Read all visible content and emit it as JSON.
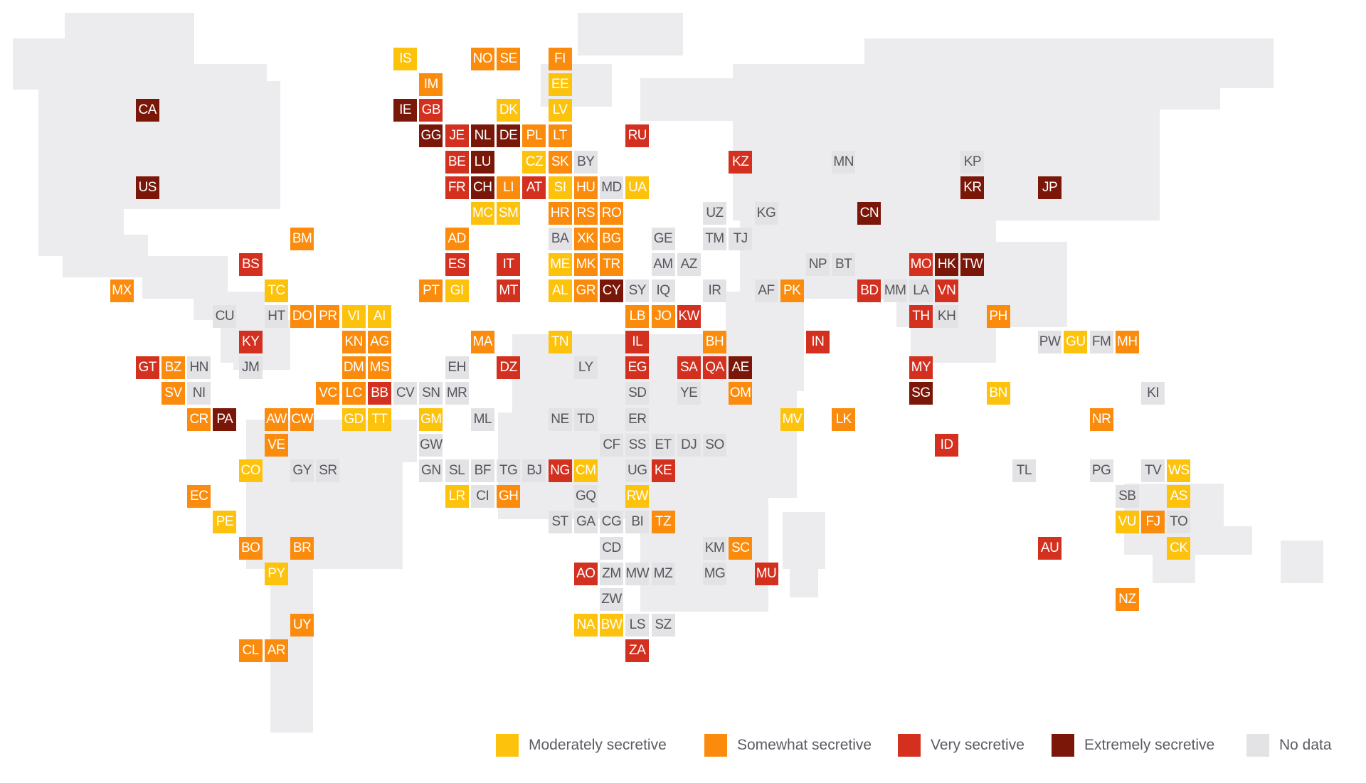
{
  "colors": {
    "moderately": "#fdc20c",
    "somewhat": "#fb8b0c",
    "very": "#d3301f",
    "extremely": "#7a1709",
    "no_data": "#e3e3e6",
    "land": "#ececee"
  },
  "legend": [
    {
      "key": "c1",
      "label": "Moderately secretive"
    },
    {
      "key": "c2",
      "label": "Somewhat secretive"
    },
    {
      "key": "c3",
      "label": "Very secretive"
    },
    {
      "key": "c4",
      "label": "Extremely secretive"
    },
    {
      "key": "nd",
      "label": "No data"
    }
  ],
  "tiles": [
    {
      "code": "IS",
      "category": "c1"
    },
    {
      "code": "NO",
      "category": "c2"
    },
    {
      "code": "SE",
      "category": "c2"
    },
    {
      "code": "FI",
      "category": "c2"
    },
    {
      "code": "IM",
      "category": "c2"
    },
    {
      "code": "EE",
      "category": "c1"
    },
    {
      "code": "CA",
      "category": "c4"
    },
    {
      "code": "IE",
      "category": "c4"
    },
    {
      "code": "GB",
      "category": "c3"
    },
    {
      "code": "DK",
      "category": "c1"
    },
    {
      "code": "LV",
      "category": "c1"
    },
    {
      "code": "GG",
      "category": "c4"
    },
    {
      "code": "JE",
      "category": "c3"
    },
    {
      "code": "NL",
      "category": "c4"
    },
    {
      "code": "DE",
      "category": "c4"
    },
    {
      "code": "PL",
      "category": "c2"
    },
    {
      "code": "LT",
      "category": "c2"
    },
    {
      "code": "RU",
      "category": "c3"
    },
    {
      "code": "BE",
      "category": "c3"
    },
    {
      "code": "LU",
      "category": "c4"
    },
    {
      "code": "CZ",
      "category": "c1"
    },
    {
      "code": "SK",
      "category": "c2"
    },
    {
      "code": "BY",
      "category": "nd"
    },
    {
      "code": "KZ",
      "category": "c3"
    },
    {
      "code": "MN",
      "category": "nd"
    },
    {
      "code": "KP",
      "category": "nd"
    },
    {
      "code": "US",
      "category": "c4"
    },
    {
      "code": "FR",
      "category": "c3"
    },
    {
      "code": "CH",
      "category": "c4"
    },
    {
      "code": "LI",
      "category": "c2"
    },
    {
      "code": "AT",
      "category": "c3"
    },
    {
      "code": "SI",
      "category": "c1"
    },
    {
      "code": "HU",
      "category": "c2"
    },
    {
      "code": "MD",
      "category": "nd"
    },
    {
      "code": "UA",
      "category": "c1"
    },
    {
      "code": "KR",
      "category": "c4"
    },
    {
      "code": "JP",
      "category": "c4"
    },
    {
      "code": "MC",
      "category": "c1"
    },
    {
      "code": "SM",
      "category": "c1"
    },
    {
      "code": "HR",
      "category": "c2"
    },
    {
      "code": "RS",
      "category": "c2"
    },
    {
      "code": "RO",
      "category": "c2"
    },
    {
      "code": "UZ",
      "category": "nd"
    },
    {
      "code": "KG",
      "category": "nd"
    },
    {
      "code": "CN",
      "category": "c4"
    },
    {
      "code": "BM",
      "category": "c2"
    },
    {
      "code": "AD",
      "category": "c2"
    },
    {
      "code": "BA",
      "category": "nd"
    },
    {
      "code": "XK",
      "category": "c2"
    },
    {
      "code": "BG",
      "category": "c2"
    },
    {
      "code": "GE",
      "category": "nd"
    },
    {
      "code": "TM",
      "category": "nd"
    },
    {
      "code": "TJ",
      "category": "nd"
    },
    {
      "code": "BS",
      "category": "c3"
    },
    {
      "code": "ES",
      "category": "c3"
    },
    {
      "code": "IT",
      "category": "c3"
    },
    {
      "code": "ME",
      "category": "c1"
    },
    {
      "code": "MK",
      "category": "c2"
    },
    {
      "code": "TR",
      "category": "c2"
    },
    {
      "code": "AM",
      "category": "nd"
    },
    {
      "code": "AZ",
      "category": "nd"
    },
    {
      "code": "NP",
      "category": "nd"
    },
    {
      "code": "BT",
      "category": "nd"
    },
    {
      "code": "MO",
      "category": "c3"
    },
    {
      "code": "HK",
      "category": "c4"
    },
    {
      "code": "TW",
      "category": "c4"
    },
    {
      "code": "MX",
      "category": "c2"
    },
    {
      "code": "TC",
      "category": "c1"
    },
    {
      "code": "PT",
      "category": "c2"
    },
    {
      "code": "GI",
      "category": "c1"
    },
    {
      "code": "MT",
      "category": "c3"
    },
    {
      "code": "AL",
      "category": "c1"
    },
    {
      "code": "GR",
      "category": "c2"
    },
    {
      "code": "CY",
      "category": "c4"
    },
    {
      "code": "SY",
      "category": "nd"
    },
    {
      "code": "IQ",
      "category": "nd"
    },
    {
      "code": "IR",
      "category": "nd"
    },
    {
      "code": "AF",
      "category": "nd"
    },
    {
      "code": "PK",
      "category": "c2"
    },
    {
      "code": "BD",
      "category": "c3"
    },
    {
      "code": "MM",
      "category": "nd"
    },
    {
      "code": "LA",
      "category": "nd"
    },
    {
      "code": "VN",
      "category": "c3"
    },
    {
      "code": "CU",
      "category": "nd"
    },
    {
      "code": "HT",
      "category": "nd"
    },
    {
      "code": "DO",
      "category": "c2"
    },
    {
      "code": "PR",
      "category": "c2"
    },
    {
      "code": "VI",
      "category": "c1"
    },
    {
      "code": "AI",
      "category": "c1"
    },
    {
      "code": "LB",
      "category": "c2"
    },
    {
      "code": "JO",
      "category": "c2"
    },
    {
      "code": "KW",
      "category": "c3"
    },
    {
      "code": "TH",
      "category": "c3"
    },
    {
      "code": "KH",
      "category": "nd"
    },
    {
      "code": "PH",
      "category": "c2"
    },
    {
      "code": "KY",
      "category": "c3"
    },
    {
      "code": "KN",
      "category": "c2"
    },
    {
      "code": "AG",
      "category": "c2"
    },
    {
      "code": "MA",
      "category": "c2"
    },
    {
      "code": "TN",
      "category": "c1"
    },
    {
      "code": "IL",
      "category": "c3"
    },
    {
      "code": "BH",
      "category": "c2"
    },
    {
      "code": "IN",
      "category": "c3"
    },
    {
      "code": "PW",
      "category": "nd"
    },
    {
      "code": "GU",
      "category": "c1"
    },
    {
      "code": "FM",
      "category": "nd"
    },
    {
      "code": "MH",
      "category": "c2"
    },
    {
      "code": "GT",
      "category": "c3"
    },
    {
      "code": "BZ",
      "category": "c2"
    },
    {
      "code": "HN",
      "category": "nd"
    },
    {
      "code": "JM",
      "category": "nd"
    },
    {
      "code": "DM",
      "category": "c2"
    },
    {
      "code": "MS",
      "category": "c2"
    },
    {
      "code": "EH",
      "category": "nd"
    },
    {
      "code": "DZ",
      "category": "c3"
    },
    {
      "code": "LY",
      "category": "nd"
    },
    {
      "code": "EG",
      "category": "c3"
    },
    {
      "code": "SA",
      "category": "c3"
    },
    {
      "code": "QA",
      "category": "c3"
    },
    {
      "code": "AE",
      "category": "c4"
    },
    {
      "code": "MY",
      "category": "c3"
    },
    {
      "code": "SV",
      "category": "c2"
    },
    {
      "code": "NI",
      "category": "nd"
    },
    {
      "code": "VC",
      "category": "c2"
    },
    {
      "code": "LC",
      "category": "c2"
    },
    {
      "code": "BB",
      "category": "c3"
    },
    {
      "code": "CV",
      "category": "nd"
    },
    {
      "code": "SN",
      "category": "nd"
    },
    {
      "code": "MR",
      "category": "nd"
    },
    {
      "code": "SD",
      "category": "nd"
    },
    {
      "code": "YE",
      "category": "nd"
    },
    {
      "code": "OM",
      "category": "c2"
    },
    {
      "code": "SG",
      "category": "c4"
    },
    {
      "code": "BN",
      "category": "c1"
    },
    {
      "code": "KI",
      "category": "nd"
    },
    {
      "code": "CR",
      "category": "c2"
    },
    {
      "code": "PA",
      "category": "c4"
    },
    {
      "code": "AW",
      "category": "c2"
    },
    {
      "code": "CW",
      "category": "c2"
    },
    {
      "code": "GD",
      "category": "c1"
    },
    {
      "code": "TT",
      "category": "c1"
    },
    {
      "code": "GM",
      "category": "c1"
    },
    {
      "code": "ML",
      "category": "nd"
    },
    {
      "code": "NE",
      "category": "nd"
    },
    {
      "code": "TD",
      "category": "nd"
    },
    {
      "code": "ER",
      "category": "nd"
    },
    {
      "code": "MV",
      "category": "c1"
    },
    {
      "code": "LK",
      "category": "c2"
    },
    {
      "code": "NR",
      "category": "c2"
    },
    {
      "code": "VE",
      "category": "c2"
    },
    {
      "code": "GW",
      "category": "nd"
    },
    {
      "code": "CF",
      "category": "nd"
    },
    {
      "code": "SS",
      "category": "nd"
    },
    {
      "code": "ET",
      "category": "nd"
    },
    {
      "code": "DJ",
      "category": "nd"
    },
    {
      "code": "SO",
      "category": "nd"
    },
    {
      "code": "ID",
      "category": "c3"
    },
    {
      "code": "CO",
      "category": "c1"
    },
    {
      "code": "GY",
      "category": "nd"
    },
    {
      "code": "SR",
      "category": "nd"
    },
    {
      "code": "GN",
      "category": "nd"
    },
    {
      "code": "SL",
      "category": "nd"
    },
    {
      "code": "BF",
      "category": "nd"
    },
    {
      "code": "TG",
      "category": "nd"
    },
    {
      "code": "BJ",
      "category": "nd"
    },
    {
      "code": "NG",
      "category": "c3"
    },
    {
      "code": "CM",
      "category": "c1"
    },
    {
      "code": "UG",
      "category": "nd"
    },
    {
      "code": "KE",
      "category": "c3"
    },
    {
      "code": "TL",
      "category": "nd"
    },
    {
      "code": "PG",
      "category": "nd"
    },
    {
      "code": "TV",
      "category": "nd"
    },
    {
      "code": "WS",
      "category": "c1"
    },
    {
      "code": "EC",
      "category": "c2"
    },
    {
      "code": "LR",
      "category": "c1"
    },
    {
      "code": "CI",
      "category": "nd"
    },
    {
      "code": "GH",
      "category": "c2"
    },
    {
      "code": "GQ",
      "category": "nd"
    },
    {
      "code": "RW",
      "category": "c1"
    },
    {
      "code": "SB",
      "category": "nd"
    },
    {
      "code": "AS",
      "category": "c1"
    },
    {
      "code": "PE",
      "category": "c1"
    },
    {
      "code": "ST",
      "category": "nd"
    },
    {
      "code": "GA",
      "category": "nd"
    },
    {
      "code": "CG",
      "category": "nd"
    },
    {
      "code": "BI",
      "category": "nd"
    },
    {
      "code": "TZ",
      "category": "c2"
    },
    {
      "code": "VU",
      "category": "c1"
    },
    {
      "code": "FJ",
      "category": "c2"
    },
    {
      "code": "TO",
      "category": "nd"
    },
    {
      "code": "BO",
      "category": "c2"
    },
    {
      "code": "BR",
      "category": "c2"
    },
    {
      "code": "CD",
      "category": "nd"
    },
    {
      "code": "KM",
      "category": "nd"
    },
    {
      "code": "SC",
      "category": "c2"
    },
    {
      "code": "AU",
      "category": "c3"
    },
    {
      "code": "CK",
      "category": "c1"
    },
    {
      "code": "PY",
      "category": "c1"
    },
    {
      "code": "AO",
      "category": "c3"
    },
    {
      "code": "ZM",
      "category": "nd"
    },
    {
      "code": "MW",
      "category": "nd"
    },
    {
      "code": "MZ",
      "category": "nd"
    },
    {
      "code": "MG",
      "category": "nd"
    },
    {
      "code": "MU",
      "category": "c3"
    },
    {
      "code": "ZW",
      "category": "nd"
    },
    {
      "code": "NZ",
      "category": "c2"
    },
    {
      "code": "UY",
      "category": "c2"
    },
    {
      "code": "NA",
      "category": "c1"
    },
    {
      "code": "BW",
      "category": "c1"
    },
    {
      "code": "LS",
      "category": "nd"
    },
    {
      "code": "SZ",
      "category": "nd"
    },
    {
      "code": "CL",
      "category": "c2"
    },
    {
      "code": "AR",
      "category": "c2"
    },
    {
      "code": "ZA",
      "category": "c3"
    }
  ]
}
